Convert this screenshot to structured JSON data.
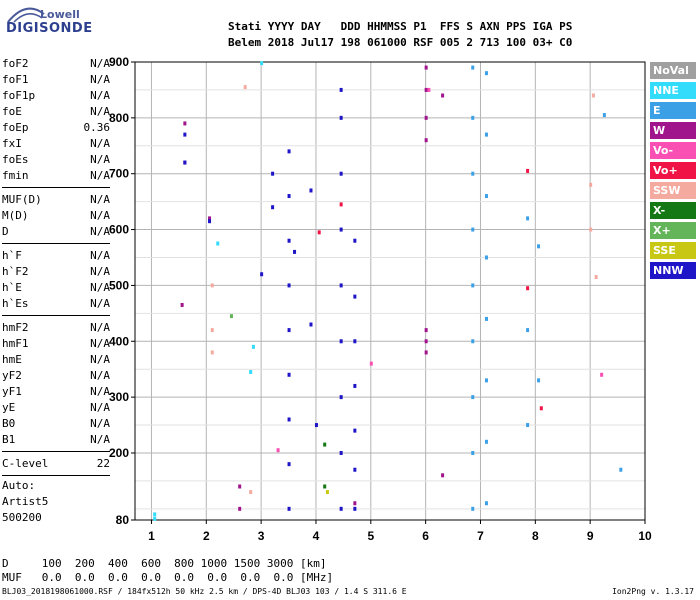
{
  "logo": {
    "line1": "Lowell",
    "line2": "DIGISONDE"
  },
  "header": {
    "line1": "Stati YYYY DAY   DDD HHMMSS P1  FFS S AXN PPS IGA PS",
    "line2": "Belem 2018 Jul17 198 061000 RSF 005 2 713 100 03+ C0"
  },
  "params": {
    "g1": [
      {
        "label": "foF2",
        "value": "N/A"
      },
      {
        "label": "foF1",
        "value": "N/A"
      },
      {
        "label": "foF1p",
        "value": "N/A"
      },
      {
        "label": "foE",
        "value": "N/A"
      },
      {
        "label": "foEp",
        "value": "0.36"
      },
      {
        "label": "fxI",
        "value": "N/A"
      },
      {
        "label": "foEs",
        "value": "N/A"
      },
      {
        "label": "fmin",
        "value": "N/A"
      }
    ],
    "g2": [
      {
        "label": "MUF(D)",
        "value": "N/A"
      },
      {
        "label": "M(D)",
        "value": "N/A"
      },
      {
        "label": "D",
        "value": "N/A"
      }
    ],
    "g3": [
      {
        "label": "h`F",
        "value": "N/A"
      },
      {
        "label": "h`F2",
        "value": "N/A"
      },
      {
        "label": "h`E",
        "value": "N/A"
      },
      {
        "label": "h`Es",
        "value": "N/A"
      }
    ],
    "g4": [
      {
        "label": "hmF2",
        "value": "N/A"
      },
      {
        "label": "hmF1",
        "value": "N/A"
      },
      {
        "label": "hmE",
        "value": "N/A"
      },
      {
        "label": "yF2",
        "value": "N/A"
      },
      {
        "label": "yF1",
        "value": "N/A"
      },
      {
        "label": "yE",
        "value": "N/A"
      },
      {
        "label": "B0",
        "value": "N/A"
      },
      {
        "label": "B1",
        "value": "N/A"
      }
    ],
    "g5": [
      {
        "label": "C-level",
        "value": "22"
      }
    ]
  },
  "auto": {
    "line1": "Auto:",
    "line2": "Artist5",
    "line3": "500200"
  },
  "bottom_table": {
    "d_row": "D     100  200  400  600  800 1000 1500 3000 [km]",
    "muf_row": "MUF   0.0  0.0  0.0  0.0  0.0  0.0  0.0  0.0 [MHz]"
  },
  "footer": {
    "left": "BLJ03_2018198061000.RSF / 184fx512h 50 kHz 2.5 km / DPS-4D BLJ03 103 / 1.4 S 311.6 E",
    "right": "Ion2Png v. 1.3.17"
  },
  "legend": [
    {
      "label": "NoVal",
      "color": "#a0a0a0"
    },
    {
      "label": "NNE",
      "color": "#32dcfa"
    },
    {
      "label": "E",
      "color": "#3ca0e6"
    },
    {
      "label": "W",
      "color": "#a0148c"
    },
    {
      "label": "Vo-",
      "color": "#fa50b4"
    },
    {
      "label": "Vo+",
      "color": "#f01446"
    },
    {
      "label": "SSW",
      "color": "#f5aaa0"
    },
    {
      "label": "X-",
      "color": "#147814"
    },
    {
      "label": "X+",
      "color": "#64b45a"
    },
    {
      "label": "SSE",
      "color": "#c8c814"
    },
    {
      "label": "NNW",
      "color": "#1e14c8"
    }
  ],
  "chart_data": {
    "type": "scatter",
    "xlim": [
      0.7,
      10
    ],
    "ylim": [
      80,
      900
    ],
    "x_ticks": [
      1,
      2,
      3,
      4,
      5,
      6,
      7,
      8,
      9,
      10
    ],
    "y_ticks": [
      80,
      200,
      300,
      400,
      500,
      600,
      700,
      800,
      900
    ],
    "grid": true,
    "series": [
      {
        "name": "NNE",
        "color": "#32dcfa",
        "x": [
          1.05,
          1.05,
          2.8,
          2.85,
          3.0,
          2.2
        ],
        "y": [
          82,
          90,
          345,
          390,
          898,
          575
        ]
      },
      {
        "name": "E",
        "color": "#3ca0e6",
        "x": [
          6.85,
          6.85,
          6.85,
          6.85,
          6.85,
          6.85,
          6.85,
          6.85,
          6.85,
          7.1,
          7.1,
          7.1,
          7.1,
          7.1,
          7.1,
          7.1,
          7.1,
          7.85,
          7.85,
          7.85,
          8.05,
          8.05,
          9.55,
          9.25
        ],
        "y": [
          100,
          200,
          300,
          400,
          500,
          600,
          700,
          800,
          890,
          110,
          220,
          330,
          440,
          550,
          660,
          770,
          880,
          250,
          420,
          620,
          330,
          570,
          170,
          805
        ]
      },
      {
        "name": "W",
        "color": "#a0148c",
        "x": [
          6.0,
          6.0,
          6.0,
          6.0,
          6.0,
          6.0,
          6.0,
          2.6,
          2.6,
          1.55,
          1.6,
          1.6,
          2.05,
          6.3,
          6.3,
          4.7
        ],
        "y": [
          380,
          400,
          420,
          760,
          800,
          850,
          890,
          100,
          140,
          465,
          720,
          790,
          620,
          160,
          840,
          110
        ]
      },
      {
        "name": "Vo-",
        "color": "#fa50b4",
        "x": [
          3.3,
          5.0,
          6.05,
          9.2
        ],
        "y": [
          205,
          360,
          850,
          340
        ]
      },
      {
        "name": "Vo+",
        "color": "#f01446",
        "x": [
          4.05,
          7.85,
          7.85,
          8.1,
          4.45
        ],
        "y": [
          595,
          495,
          705,
          280,
          645
        ]
      },
      {
        "name": "SSW",
        "color": "#f5aaa0",
        "x": [
          2.1,
          2.1,
          2.1,
          9.0,
          9.0,
          9.05,
          9.1,
          2.7,
          2.8
        ],
        "y": [
          380,
          420,
          500,
          600,
          680,
          840,
          515,
          855,
          130
        ]
      },
      {
        "name": "X-",
        "color": "#147814",
        "x": [
          4.15,
          4.15
        ],
        "y": [
          140,
          215
        ]
      },
      {
        "name": "X+",
        "color": "#64b45a",
        "x": [
          2.45
        ],
        "y": [
          445
        ]
      },
      {
        "name": "SSE",
        "color": "#c8c814",
        "x": [
          4.2
        ],
        "y": [
          130
        ]
      },
      {
        "name": "NNW",
        "color": "#1e14c8",
        "x": [
          3.5,
          3.5,
          3.5,
          3.5,
          3.5,
          3.5,
          3.5,
          3.5,
          3.5,
          4.45,
          4.45,
          4.45,
          4.45,
          4.45,
          4.45,
          4.45,
          4.45,
          4.45,
          4.7,
          4.7,
          4.7,
          4.7,
          4.7,
          4.7,
          4.7,
          3.0,
          3.2,
          3.2,
          3.6,
          3.9,
          3.9,
          4.0,
          1.6,
          1.6,
          2.05
        ],
        "y": [
          100,
          180,
          260,
          340,
          420,
          500,
          580,
          660,
          740,
          100,
          200,
          300,
          400,
          500,
          600,
          700,
          800,
          850,
          100,
          170,
          240,
          320,
          400,
          480,
          580,
          520,
          640,
          700,
          560,
          670,
          430,
          250,
          720,
          770,
          615
        ]
      }
    ]
  }
}
